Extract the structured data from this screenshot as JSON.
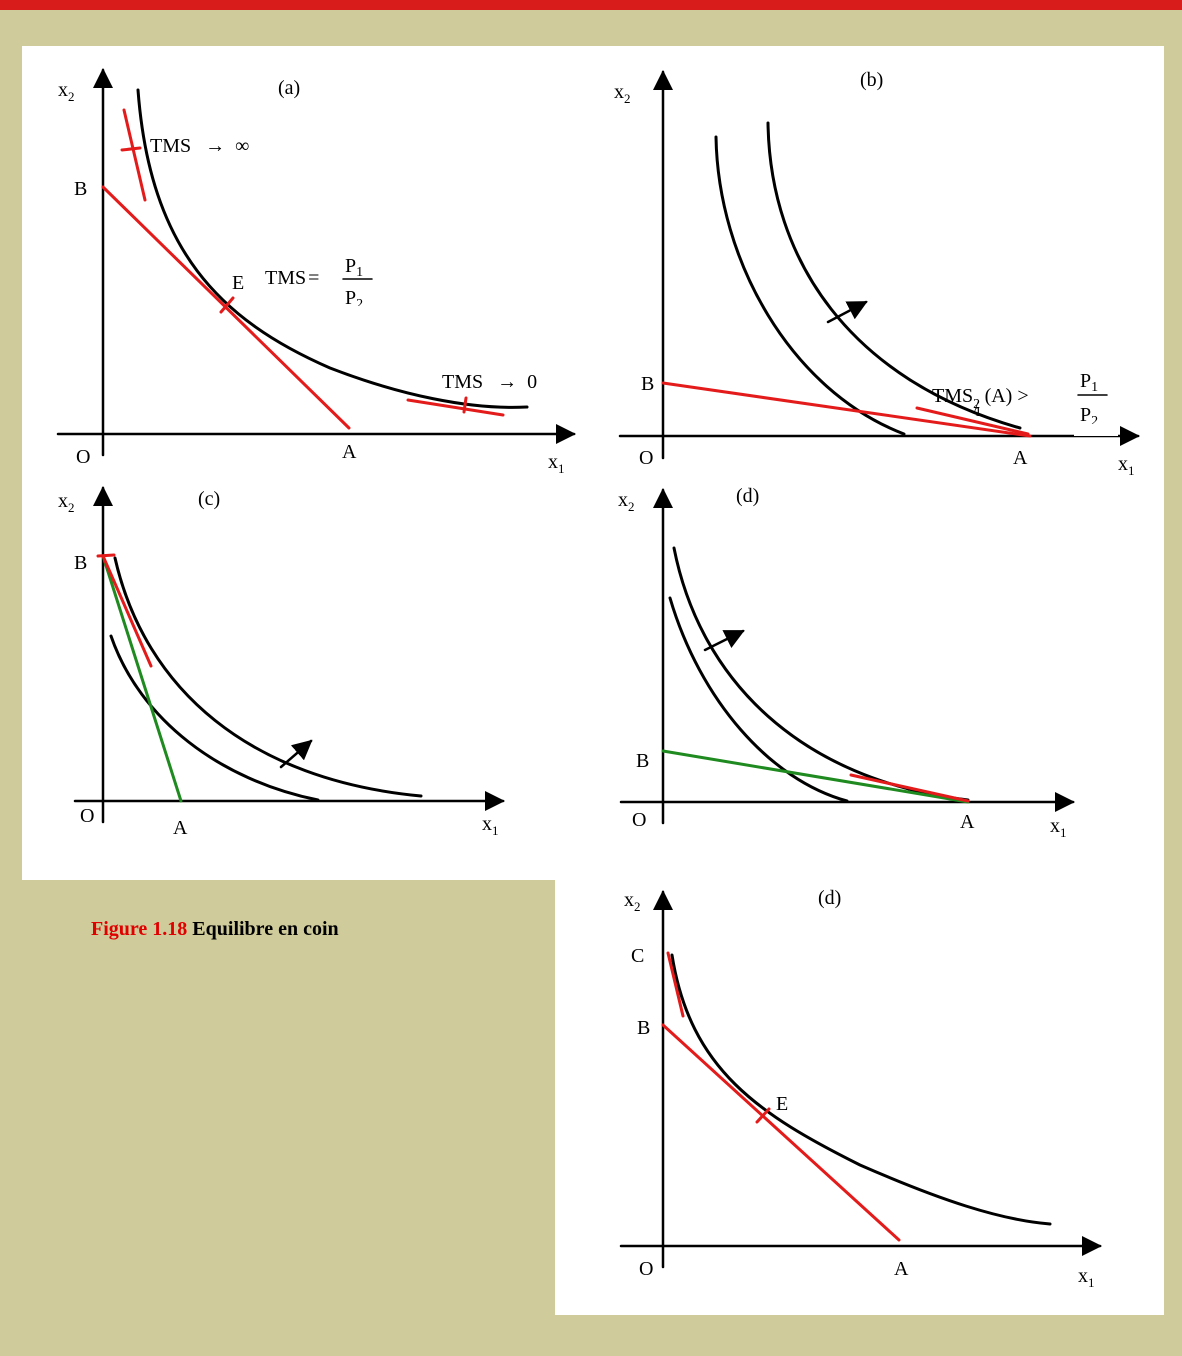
{
  "caption": {
    "number": "Figure 1.18",
    "title": "Equilibre en coin"
  },
  "colors": {
    "frame": "#cfcb9a",
    "top_bar": "#d81b1b",
    "budget_red": "#e41b1b",
    "budget_green": "#1f8a1f",
    "curve": "#000000"
  },
  "panels": [
    {
      "id": "a",
      "label": "(a)",
      "x_axis": "x",
      "x_sub": "1",
      "y_axis": "x",
      "y_sub": "2",
      "origin": "O",
      "points": [
        "B",
        "A",
        "E"
      ],
      "notes": {
        "tms_inf": "TMS",
        "arrow": "→",
        "inf": "∞",
        "tms_eq": "TMS",
        "equals": "=",
        "p1": "P",
        "p1_sub": "1",
        "p2": "P",
        "p2_sub": "2",
        "tms_zero": "TMS",
        "zero": "0"
      }
    },
    {
      "id": "b",
      "label": "(b)",
      "x_axis": "x",
      "x_sub": "1",
      "y_axis": "x",
      "y_sub": "2",
      "origin": "O",
      "points": [
        "B",
        "A"
      ],
      "notes": {
        "tms": "TMS",
        "sub": "2",
        "slash": "/",
        "sub2": "1",
        "at": "(A) >",
        "p1": "P",
        "p1_sub": "1",
        "p2": "P",
        "p2_sub": "2"
      }
    },
    {
      "id": "c",
      "label": "(c)",
      "x_axis": "x",
      "x_sub": "1",
      "y_axis": "x",
      "y_sub": "2",
      "origin": "O",
      "points": [
        "B",
        "A"
      ]
    },
    {
      "id": "d",
      "label": "(d)",
      "x_axis": "x",
      "x_sub": "1",
      "y_axis": "x",
      "y_sub": "2",
      "origin": "O",
      "points": [
        "B",
        "A"
      ]
    },
    {
      "id": "e",
      "label": "(d)",
      "x_axis": "x",
      "x_sub": "1",
      "y_axis": "x",
      "y_sub": "2",
      "origin": "O",
      "points": [
        "C",
        "B",
        "E",
        "A"
      ]
    }
  ]
}
